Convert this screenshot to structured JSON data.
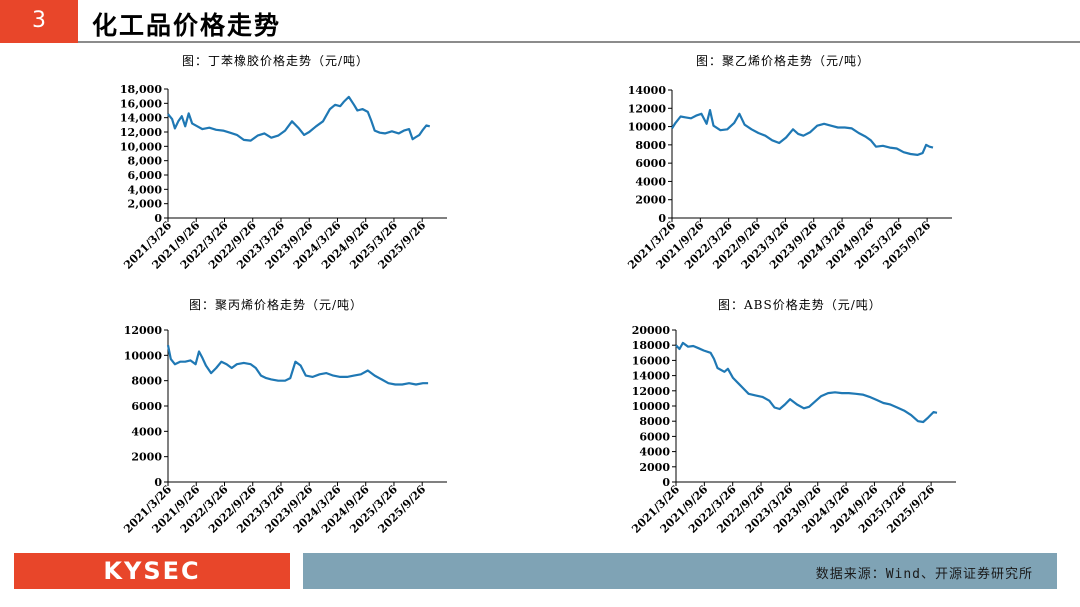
{
  "header": {
    "number": "3",
    "title": "化工品价格走势"
  },
  "footer": {
    "logo": "KYSEC",
    "source": "数据来源：Wind、开源证券研究所"
  },
  "colors": {
    "accent": "#E8462A",
    "footer_bar": "#7FA3B5",
    "line": "#1F78B4"
  },
  "chart_data": [
    {
      "type": "line",
      "title": "图：丁苯橡胶价格走势（元/吨）",
      "categories": [
        "2021/3/26",
        "2021/9/26",
        "2022/3/26",
        "2022/9/26",
        "2023/3/26",
        "2023/9/26",
        "2024/3/26",
        "2024/9/26",
        "2025/3/26",
        "2025/9/26"
      ],
      "ylim": [
        0,
        18000
      ],
      "yticks": [
        "0",
        "2,000",
        "4,000",
        "6,000",
        "8,000",
        "10,000",
        "12,000",
        "14,000",
        "16,000",
        "18,000"
      ],
      "series": [
        {
          "values": [
            [
              0,
              14500
            ],
            [
              0.12,
              13800
            ],
            [
              0.2,
              12500
            ],
            [
              0.3,
              13500
            ],
            [
              0.4,
              14200
            ],
            [
              0.5,
              12800
            ],
            [
              0.6,
              14600
            ],
            [
              0.7,
              13200
            ],
            [
              0.85,
              12800
            ],
            [
              1,
              12400
            ],
            [
              1.2,
              12600
            ],
            [
              1.4,
              12300
            ],
            [
              1.6,
              12200
            ],
            [
              1.8,
              11900
            ],
            [
              2,
              11600
            ],
            [
              2.2,
              10900
            ],
            [
              2.4,
              10800
            ],
            [
              2.6,
              11500
            ],
            [
              2.8,
              11800
            ],
            [
              3,
              11200
            ],
            [
              3.2,
              11500
            ],
            [
              3.4,
              12200
            ],
            [
              3.6,
              13500
            ],
            [
              3.8,
              12500
            ],
            [
              3.95,
              11600
            ],
            [
              4.1,
              12000
            ],
            [
              4.3,
              12800
            ],
            [
              4.5,
              13500
            ],
            [
              4.7,
              15200
            ],
            [
              4.85,
              15800
            ],
            [
              5,
              15600
            ],
            [
              5.1,
              16200
            ],
            [
              5.25,
              16900
            ],
            [
              5.4,
              15800
            ],
            [
              5.5,
              15000
            ],
            [
              5.65,
              15200
            ],
            [
              5.8,
              14800
            ],
            [
              5.9,
              13600
            ],
            [
              6,
              12200
            ],
            [
              6.15,
              11900
            ],
            [
              6.3,
              11800
            ],
            [
              6.5,
              12100
            ],
            [
              6.7,
              11800
            ],
            [
              6.85,
              12200
            ],
            [
              7,
              12400
            ],
            [
              7.1,
              11000
            ],
            [
              7.2,
              11300
            ],
            [
              7.3,
              11600
            ],
            [
              7.4,
              12300
            ],
            [
              7.5,
              12900
            ],
            [
              7.6,
              12800
            ]
          ]
        }
      ]
    },
    {
      "type": "line",
      "title": "图：聚乙烯价格走势（元/吨）",
      "categories": [
        "2021/3/26",
        "2021/9/26",
        "2022/3/26",
        "2022/9/26",
        "2023/3/26",
        "2023/9/26",
        "2024/3/26",
        "2024/9/26",
        "2025/3/26",
        "2025/9/26"
      ],
      "ylim": [
        0,
        14000
      ],
      "yticks": [
        "0",
        "2000",
        "4000",
        "6000",
        "8000",
        "10000",
        "12000",
        "14000"
      ],
      "series": [
        {
          "values": [
            [
              0,
              9800
            ],
            [
              0.1,
              10400
            ],
            [
              0.25,
              11100
            ],
            [
              0.4,
              11000
            ],
            [
              0.55,
              10900
            ],
            [
              0.7,
              11200
            ],
            [
              0.85,
              11400
            ],
            [
              1,
              10300
            ],
            [
              1.1,
              11800
            ],
            [
              1.2,
              10100
            ],
            [
              1.4,
              9600
            ],
            [
              1.6,
              9700
            ],
            [
              1.8,
              10400
            ],
            [
              1.95,
              11400
            ],
            [
              2.1,
              10200
            ],
            [
              2.3,
              9700
            ],
            [
              2.5,
              9300
            ],
            [
              2.7,
              9000
            ],
            [
              2.9,
              8500
            ],
            [
              3.1,
              8200
            ],
            [
              3.3,
              8800
            ],
            [
              3.5,
              9700
            ],
            [
              3.65,
              9200
            ],
            [
              3.8,
              9000
            ],
            [
              4,
              9400
            ],
            [
              4.2,
              10100
            ],
            [
              4.4,
              10300
            ],
            [
              4.6,
              10100
            ],
            [
              4.8,
              9900
            ],
            [
              5,
              9900
            ],
            [
              5.2,
              9800
            ],
            [
              5.4,
              9300
            ],
            [
              5.6,
              8900
            ],
            [
              5.75,
              8500
            ],
            [
              5.9,
              7800
            ],
            [
              6.1,
              7900
            ],
            [
              6.3,
              7700
            ],
            [
              6.5,
              7600
            ],
            [
              6.7,
              7200
            ],
            [
              6.9,
              7000
            ],
            [
              7.1,
              6900
            ],
            [
              7.25,
              7100
            ],
            [
              7.35,
              8000
            ],
            [
              7.45,
              7800
            ],
            [
              7.55,
              7700
            ]
          ]
        }
      ]
    },
    {
      "type": "line",
      "title": "图：聚丙烯价格走势（元/吨）",
      "categories": [
        "2021/3/26",
        "2021/9/26",
        "2022/3/26",
        "2022/9/26",
        "2023/3/26",
        "2023/9/26",
        "2024/3/26",
        "2024/9/26",
        "2025/3/26",
        "2025/9/26"
      ],
      "ylim": [
        0,
        12000
      ],
      "yticks": [
        "0",
        "2000",
        "4000",
        "6000",
        "8000",
        "10000",
        "12000"
      ],
      "series": [
        {
          "values": [
            [
              0,
              10800
            ],
            [
              0.08,
              9700
            ],
            [
              0.2,
              9300
            ],
            [
              0.35,
              9500
            ],
            [
              0.5,
              9500
            ],
            [
              0.65,
              9600
            ],
            [
              0.8,
              9300
            ],
            [
              0.9,
              10300
            ],
            [
              1,
              9800
            ],
            [
              1.1,
              9200
            ],
            [
              1.25,
              8600
            ],
            [
              1.4,
              9000
            ],
            [
              1.55,
              9500
            ],
            [
              1.7,
              9300
            ],
            [
              1.85,
              9000
            ],
            [
              2,
              9300
            ],
            [
              2.2,
              9400
            ],
            [
              2.4,
              9300
            ],
            [
              2.55,
              9000
            ],
            [
              2.7,
              8400
            ],
            [
              2.85,
              8200
            ],
            [
              3,
              8100
            ],
            [
              3.2,
              8000
            ],
            [
              3.4,
              8000
            ],
            [
              3.55,
              8200
            ],
            [
              3.7,
              9500
            ],
            [
              3.85,
              9200
            ],
            [
              4,
              8400
            ],
            [
              4.2,
              8300
            ],
            [
              4.4,
              8500
            ],
            [
              4.6,
              8600
            ],
            [
              4.8,
              8400
            ],
            [
              5,
              8300
            ],
            [
              5.2,
              8300
            ],
            [
              5.4,
              8400
            ],
            [
              5.6,
              8500
            ],
            [
              5.8,
              8800
            ],
            [
              6,
              8400
            ],
            [
              6.2,
              8100
            ],
            [
              6.4,
              7800
            ],
            [
              6.6,
              7700
            ],
            [
              6.8,
              7700
            ],
            [
              7,
              7800
            ],
            [
              7.2,
              7700
            ],
            [
              7.4,
              7800
            ],
            [
              7.55,
              7800
            ]
          ]
        }
      ]
    },
    {
      "type": "line",
      "title": "图：ABS价格走势（元/吨）",
      "categories": [
        "2021/3/26",
        "2021/9/26",
        "2022/3/26",
        "2022/9/26",
        "2023/3/26",
        "2023/9/26",
        "2024/3/26",
        "2024/9/26",
        "2025/3/26",
        "2025/9/26"
      ],
      "ylim": [
        0,
        20000
      ],
      "yticks": [
        "0",
        "2000",
        "4000",
        "6000",
        "8000",
        "10000",
        "12000",
        "14000",
        "16000",
        "18000",
        "20000"
      ],
      "series": [
        {
          "values": [
            [
              0,
              18000
            ],
            [
              0.1,
              17500
            ],
            [
              0.2,
              18300
            ],
            [
              0.35,
              17800
            ],
            [
              0.5,
              17900
            ],
            [
              0.65,
              17600
            ],
            [
              0.8,
              17300
            ],
            [
              1,
              17000
            ],
            [
              1.1,
              16200
            ],
            [
              1.2,
              15000
            ],
            [
              1.4,
              14500
            ],
            [
              1.5,
              14900
            ],
            [
              1.65,
              13700
            ],
            [
              1.8,
              13000
            ],
            [
              1.95,
              12300
            ],
            [
              2.1,
              11600
            ],
            [
              2.3,
              11400
            ],
            [
              2.5,
              11200
            ],
            [
              2.7,
              10700
            ],
            [
              2.85,
              9800
            ],
            [
              3,
              9600
            ],
            [
              3.15,
              10200
            ],
            [
              3.3,
              10900
            ],
            [
              3.5,
              10200
            ],
            [
              3.7,
              9700
            ],
            [
              3.85,
              9900
            ],
            [
              4,
              10500
            ],
            [
              4.2,
              11300
            ],
            [
              4.4,
              11700
            ],
            [
              4.6,
              11800
            ],
            [
              4.8,
              11700
            ],
            [
              5,
              11700
            ],
            [
              5.2,
              11600
            ],
            [
              5.4,
              11500
            ],
            [
              5.6,
              11200
            ],
            [
              5.8,
              10800
            ],
            [
              6,
              10400
            ],
            [
              6.2,
              10200
            ],
            [
              6.4,
              9800
            ],
            [
              6.6,
              9400
            ],
            [
              6.8,
              8800
            ],
            [
              7,
              8000
            ],
            [
              7.15,
              7900
            ],
            [
              7.3,
              8500
            ],
            [
              7.45,
              9200
            ],
            [
              7.55,
              9100
            ]
          ]
        }
      ]
    }
  ]
}
